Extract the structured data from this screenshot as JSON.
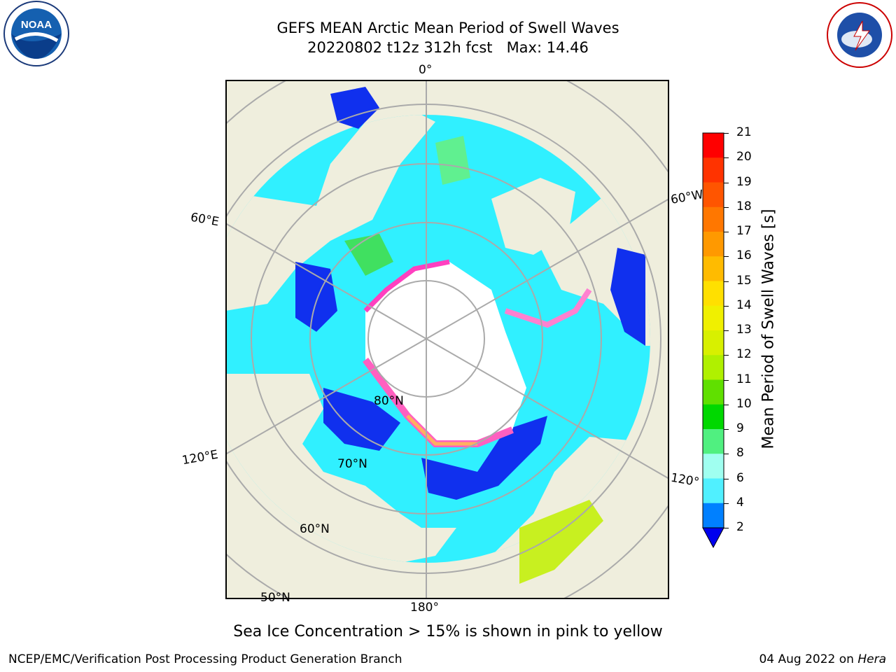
{
  "title": "GEFS MEAN Arctic Mean Period of Swell Waves",
  "subtitle": "20220802 t12z 312h fcst   Max: 14.46",
  "map": {
    "lon_labels": {
      "top": "0°",
      "right": "60°W",
      "left": "60°E",
      "left_bottom": "120°E",
      "right_bottom": "120°",
      "bottom": "180°"
    },
    "lat_labels": [
      "80°N",
      "70°N",
      "60°N",
      "50°N"
    ]
  },
  "colorbar": {
    "label": "Mean Period of Swell Waves [s]",
    "ticks": [
      "21",
      "20",
      "19",
      "18",
      "17",
      "16",
      "15",
      "14",
      "13",
      "12",
      "11",
      "10",
      "9",
      "8",
      "6",
      "4",
      "2"
    ],
    "colors": [
      "#ff0000",
      "#ff3300",
      "#ff5500",
      "#ff7700",
      "#ff9900",
      "#ffbb00",
      "#ffe000",
      "#f0f000",
      "#d8f000",
      "#b0f000",
      "#60e000",
      "#00d800",
      "#50f080",
      "#a0fff0",
      "#50f0ff",
      "#00d8ff",
      "#0080ff"
    ],
    "under_color": "#0000ee"
  },
  "note": "Sea Ice Concentration > 15% is shown in pink to yellow",
  "footer": {
    "left": "NCEP/EMC/Verification Post Processing Product Generation Branch",
    "date": "04 Aug 2022 on ",
    "host": "Hera"
  },
  "logos": {
    "noaa": "NOAA",
    "nws": "NATIONAL WEATHER SERVICE"
  }
}
